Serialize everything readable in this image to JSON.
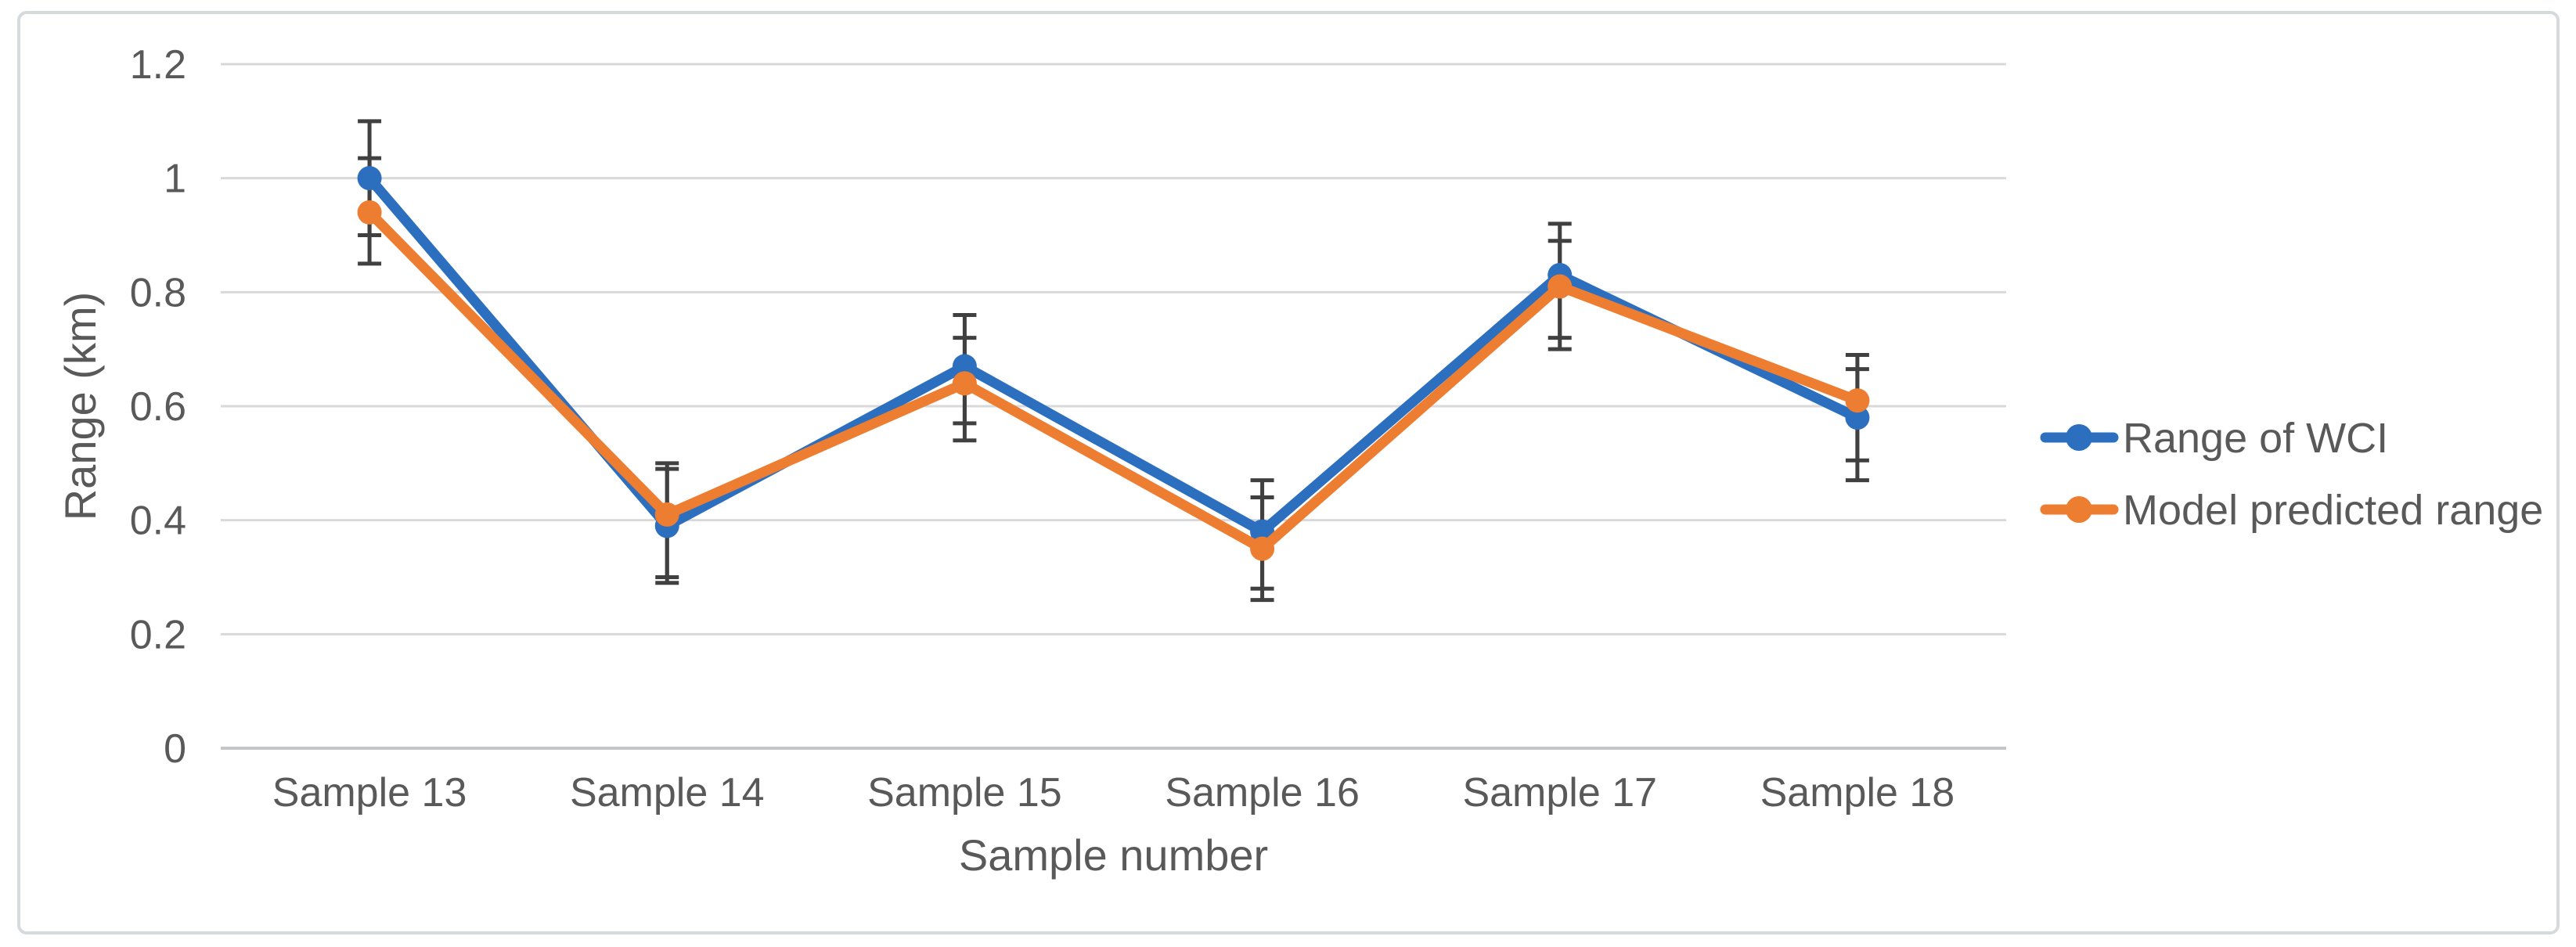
{
  "figure": {
    "background": "#ffffff",
    "border_color": "#d7dadd"
  },
  "chart_data": {
    "type": "line",
    "title": "",
    "categories": [
      "Sample 13",
      "Sample 14",
      "Sample 15",
      "Sample 16",
      "Sample 17",
      "Sample 18"
    ],
    "xlabel": "Sample number",
    "ylabel": "Range (km)",
    "ylim": [
      0,
      1.2
    ],
    "yticks": [
      0,
      0.2,
      0.4,
      0.6,
      0.8,
      1,
      1.2
    ],
    "ytick_labels": [
      "0",
      "0.2",
      "0.4",
      "0.6",
      "0.8",
      "1",
      "1.2"
    ],
    "grid": "horizontal",
    "gridline_color": "#d9d9d9",
    "axis_line_color": "#c3c7ca",
    "error_bar_color": "#404040",
    "text_color": "#595959",
    "legend_position": "right-middle",
    "series": [
      {
        "name": "Range of WCI",
        "color": "#2c6fbf",
        "values": [
          1.0,
          0.39,
          0.67,
          0.38,
          0.83,
          0.58
        ],
        "error_up": [
          0.1,
          0.1,
          0.09,
          0.09,
          0.09,
          0.085
        ],
        "error_down": [
          0.1,
          0.1,
          0.1,
          0.1,
          0.11,
          0.11
        ]
      },
      {
        "name": "Model predicted range",
        "color": "#ed7d31",
        "values": [
          0.94,
          0.41,
          0.64,
          0.35,
          0.81,
          0.61
        ],
        "error_up": [
          0.095,
          0.09,
          0.08,
          0.09,
          0.08,
          0.08
        ],
        "error_down": [
          0.09,
          0.11,
          0.1,
          0.09,
          0.11,
          0.105
        ]
      }
    ]
  }
}
